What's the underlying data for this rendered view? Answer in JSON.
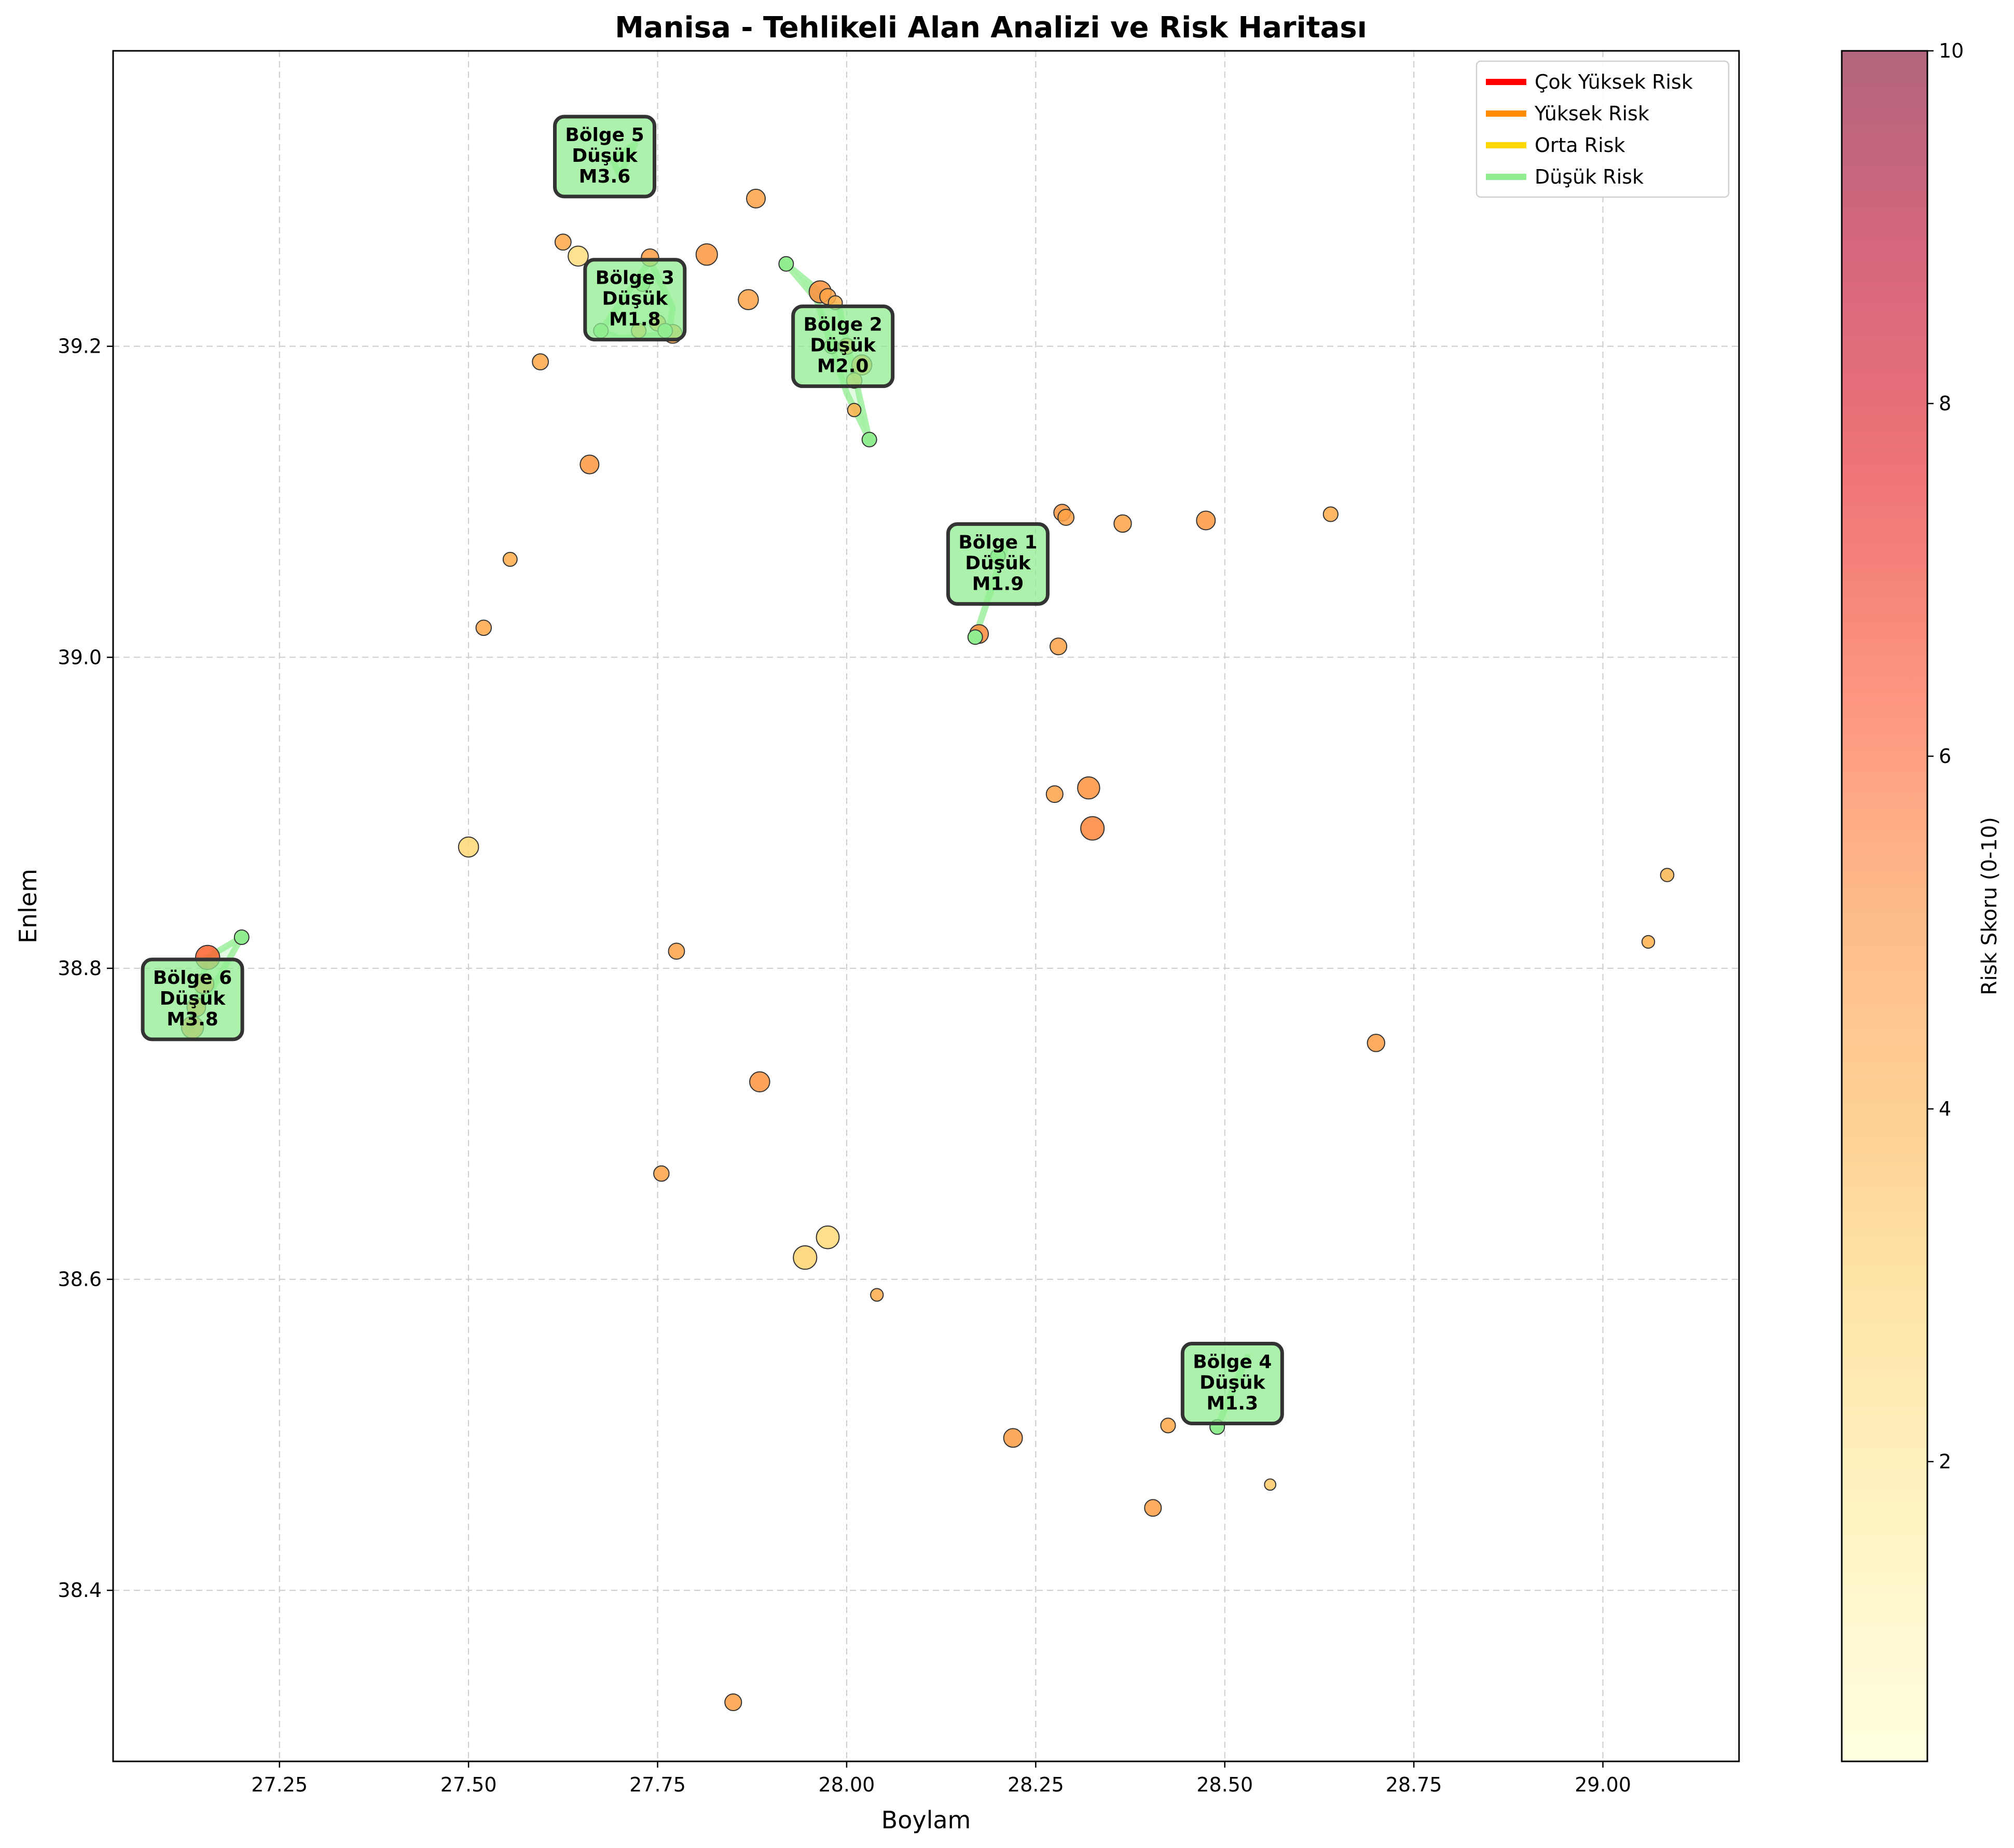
{
  "chart_data": {
    "type": "scatter",
    "title": "Manisa - Tehlikeli Alan Analizi ve Risk Haritası",
    "xlabel": "Boylam",
    "ylabel": "Enlem",
    "xlim": [
      27.03,
      29.18
    ],
    "ylim": [
      38.29,
      39.39
    ],
    "xticks": [
      27.25,
      27.5,
      27.75,
      28.0,
      28.25,
      28.5,
      28.75,
      29.0
    ],
    "xtick_labels": [
      "27.25",
      "27.50",
      "27.75",
      "28.00",
      "28.25",
      "28.50",
      "28.75",
      "29.00"
    ],
    "yticks": [
      38.4,
      38.6,
      38.8,
      39.0,
      39.2
    ],
    "ytick_labels": [
      "38.4",
      "38.6",
      "38.8",
      "39.0",
      "39.2"
    ],
    "grid": true,
    "legend_position": "top-right",
    "legend": [
      {
        "label": "Çok Yüksek Risk",
        "color": "#ff0000"
      },
      {
        "label": "Yüksek Risk",
        "color": "#ff8c00"
      },
      {
        "label": "Orta Risk",
        "color": "#ffd700"
      },
      {
        "label": "Düşük Risk",
        "color": "#90ee90"
      }
    ],
    "colorbar": {
      "label": "Risk Skoru (0-10)",
      "min": 0.3,
      "max": 10,
      "ticks": [
        2,
        4,
        6,
        8,
        10
      ],
      "tick_labels": [
        "2",
        "4",
        "6",
        "8",
        "10"
      ],
      "colormap": "YlOrRd"
    },
    "points": [
      {
        "lon": 27.88,
        "lat": 39.295,
        "mag": 2.0,
        "risk": 4.5
      },
      {
        "lon": 27.625,
        "lat": 39.267,
        "mag": 1.6,
        "risk": 4.3
      },
      {
        "lon": 27.645,
        "lat": 39.258,
        "mag": 2.2,
        "risk": 2.5
      },
      {
        "lon": 27.74,
        "lat": 39.257,
        "mag": 1.8,
        "risk": 4.6
      },
      {
        "lon": 27.815,
        "lat": 39.259,
        "mag": 2.4,
        "risk": 4.8
      },
      {
        "lon": 27.87,
        "lat": 39.23,
        "mag": 2.2,
        "risk": 4.5
      },
      {
        "lon": 27.965,
        "lat": 39.235,
        "mag": 2.5,
        "risk": 5.1
      },
      {
        "lon": 27.975,
        "lat": 39.232,
        "mag": 1.6,
        "risk": 4.4
      },
      {
        "lon": 27.985,
        "lat": 39.228,
        "mag": 1.3,
        "risk": 4.0
      },
      {
        "lon": 27.75,
        "lat": 39.215,
        "mag": 1.6,
        "risk": 4.4
      },
      {
        "lon": 27.77,
        "lat": 39.208,
        "mag": 2.0,
        "risk": 4.3
      },
      {
        "lon": 27.725,
        "lat": 39.21,
        "mag": 1.4,
        "risk": 4.0
      },
      {
        "lon": 28.0,
        "lat": 39.2,
        "mag": 1.6,
        "risk": 4.4
      },
      {
        "lon": 28.02,
        "lat": 39.188,
        "mag": 2.2,
        "risk": 4.6
      },
      {
        "lon": 28.01,
        "lat": 39.178,
        "mag": 1.5,
        "risk": 4.2
      },
      {
        "lon": 27.595,
        "lat": 39.19,
        "mag": 1.6,
        "risk": 4.3
      },
      {
        "lon": 28.01,
        "lat": 39.159,
        "mag": 1.2,
        "risk": 4.0
      },
      {
        "lon": 27.66,
        "lat": 39.124,
        "mag": 2.0,
        "risk": 4.8
      },
      {
        "lon": 28.285,
        "lat": 39.093,
        "mag": 1.7,
        "risk": 4.9
      },
      {
        "lon": 28.29,
        "lat": 39.09,
        "mag": 1.6,
        "risk": 4.5
      },
      {
        "lon": 28.365,
        "lat": 39.086,
        "mag": 1.8,
        "risk": 4.5
      },
      {
        "lon": 28.475,
        "lat": 39.088,
        "mag": 2.0,
        "risk": 4.8
      },
      {
        "lon": 28.64,
        "lat": 39.092,
        "mag": 1.4,
        "risk": 4.2
      },
      {
        "lon": 27.555,
        "lat": 39.063,
        "mag": 1.3,
        "risk": 4.2
      },
      {
        "lon": 27.52,
        "lat": 39.019,
        "mag": 1.5,
        "risk": 4.3
      },
      {
        "lon": 28.175,
        "lat": 39.015,
        "mag": 2.0,
        "risk": 5.2
      },
      {
        "lon": 28.28,
        "lat": 39.007,
        "mag": 1.7,
        "risk": 4.5
      },
      {
        "lon": 28.32,
        "lat": 38.916,
        "mag": 2.5,
        "risk": 5.0
      },
      {
        "lon": 28.275,
        "lat": 38.912,
        "mag": 1.7,
        "risk": 4.5
      },
      {
        "lon": 28.325,
        "lat": 38.89,
        "mag": 2.7,
        "risk": 5.3
      },
      {
        "lon": 27.5,
        "lat": 38.878,
        "mag": 2.2,
        "risk": 2.8
      },
      {
        "lon": 29.085,
        "lat": 38.86,
        "mag": 1.2,
        "risk": 3.8
      },
      {
        "lon": 29.06,
        "lat": 38.817,
        "mag": 1.1,
        "risk": 4.0
      },
      {
        "lon": 27.775,
        "lat": 38.811,
        "mag": 1.6,
        "risk": 4.5
      },
      {
        "lon": 28.7,
        "lat": 38.752,
        "mag": 1.8,
        "risk": 4.6
      },
      {
        "lon": 27.885,
        "lat": 38.727,
        "mag": 2.2,
        "risk": 5.0
      },
      {
        "lon": 27.755,
        "lat": 38.668,
        "mag": 1.5,
        "risk": 4.5
      },
      {
        "lon": 27.975,
        "lat": 38.627,
        "mag": 2.6,
        "risk": 2.7
      },
      {
        "lon": 27.945,
        "lat": 38.614,
        "mag": 2.7,
        "risk": 2.9
      },
      {
        "lon": 28.04,
        "lat": 38.59,
        "mag": 1.1,
        "risk": 4.2
      },
      {
        "lon": 28.22,
        "lat": 38.498,
        "mag": 2.0,
        "risk": 4.7
      },
      {
        "lon": 28.425,
        "lat": 38.506,
        "mag": 1.4,
        "risk": 4.3
      },
      {
        "lon": 28.405,
        "lat": 38.453,
        "mag": 1.7,
        "risk": 4.6
      },
      {
        "lon": 28.56,
        "lat": 38.468,
        "mag": 0.9,
        "risk": 3.2
      },
      {
        "lon": 27.85,
        "lat": 38.328,
        "mag": 1.7,
        "risk": 4.6
      },
      {
        "lon": 27.155,
        "lat": 38.807,
        "mag": 2.8,
        "risk": 6.0
      },
      {
        "lon": 27.15,
        "lat": 38.79,
        "mag": 2.2,
        "risk": 5.3
      },
      {
        "lon": 27.14,
        "lat": 38.775,
        "mag": 2.0,
        "risk": 5.4
      },
      {
        "lon": 27.135,
        "lat": 38.762,
        "mag": 2.5,
        "risk": 5.6
      }
    ],
    "zones": [
      {
        "label": "Bölge 1",
        "level": "Düşük",
        "mag_label": "M1.9",
        "color": "#90ee90",
        "hull": [
          [
            28.17,
            39.013
          ],
          [
            28.205,
            39.065
          ],
          [
            28.21,
            39.07
          ]
        ],
        "members": [
          [
            28.2,
            39.065
          ],
          [
            28.17,
            39.013
          ]
        ],
        "label_pos": [
          28.2,
          39.06
        ]
      },
      {
        "label": "Bölge 2",
        "level": "Düşük",
        "mag_label": "M2.0",
        "color": "#90ee90",
        "hull": [
          [
            27.92,
            39.253
          ],
          [
            27.99,
            39.225
          ],
          [
            28.03,
            39.14
          ],
          [
            28.0,
            39.17
          ],
          [
            27.96,
            39.23
          ]
        ],
        "members": [
          [
            27.92,
            39.253
          ],
          [
            28.03,
            39.14
          ],
          [
            27.98,
            39.2
          ]
        ],
        "label_pos": [
          27.995,
          39.2
        ]
      },
      {
        "label": "Bölge 3",
        "level": "Düşük",
        "mag_label": "M1.8",
        "color": "#90ee90",
        "hull": [
          [
            27.675,
            39.21
          ],
          [
            27.74,
            39.255
          ],
          [
            27.77,
            39.225
          ],
          [
            27.765,
            39.208
          ],
          [
            27.7,
            39.205
          ]
        ],
        "members": [
          [
            27.675,
            39.21
          ],
          [
            27.73,
            39.24
          ],
          [
            27.76,
            39.21
          ]
        ],
        "label_pos": [
          27.72,
          39.23
        ]
      },
      {
        "label": "Bölge 4",
        "level": "Düşük",
        "mag_label": "M1.3",
        "color": "#90ee90",
        "hull": [
          [
            28.49,
            38.505
          ],
          [
            28.53,
            38.55
          ],
          [
            28.52,
            38.54
          ]
        ],
        "members": [
          [
            28.49,
            38.505
          ]
        ],
        "label_pos": [
          28.51,
          38.533
        ]
      },
      {
        "label": "Bölge 5",
        "level": "Düşük",
        "mag_label": "M3.6",
        "color": "#90ee90",
        "hull": [
          [
            27.69,
            39.32
          ],
          [
            27.72,
            39.33
          ],
          [
            27.7,
            39.31
          ]
        ],
        "members": [],
        "label_pos": [
          27.68,
          39.322
        ]
      },
      {
        "label": "Bölge 6",
        "level": "Düşük",
        "mag_label": "M3.8",
        "color": "#90ee90",
        "hull": [
          [
            27.2,
            38.82
          ],
          [
            27.13,
            38.76
          ],
          [
            27.155,
            38.807
          ]
        ],
        "members": [
          [
            27.2,
            38.82
          ]
        ],
        "label_pos": [
          27.135,
          38.78
        ]
      }
    ]
  }
}
